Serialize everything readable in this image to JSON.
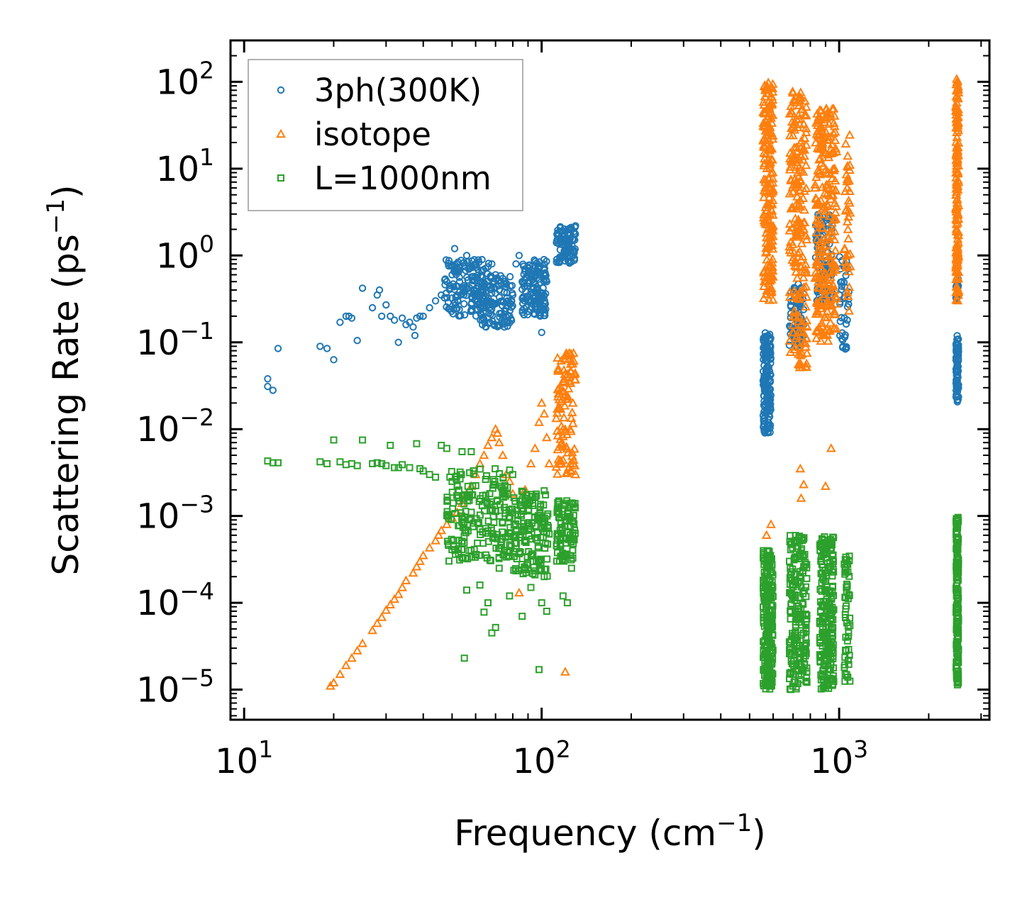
{
  "chart_data": {
    "type": "scatter",
    "title": "",
    "xlabel": "Frequency (cm",
    "xlabel_sup": "−1",
    "xlabel_close": ")",
    "ylabel": "Scattering Rate (ps",
    "ylabel_sup": "−1",
    "ylabel_close": ")",
    "xscale": "log",
    "yscale": "log",
    "xlim": [
      9.0,
      3200
    ],
    "ylim": [
      4.5e-06,
      300
    ],
    "x_ticks": [
      {
        "value": 10,
        "base": "10",
        "exp": "1"
      },
      {
        "value": 100,
        "base": "10",
        "exp": "2"
      },
      {
        "value": 1000,
        "base": "10",
        "exp": "3"
      }
    ],
    "y_ticks": [
      {
        "value": 100,
        "base": "10",
        "exp": "2"
      },
      {
        "value": 10,
        "base": "10",
        "exp": "1"
      },
      {
        "value": 1,
        "base": "10",
        "exp": "0"
      },
      {
        "value": 0.1,
        "base": "10",
        "exp": "−1"
      },
      {
        "value": 0.01,
        "base": "10",
        "exp": "−2"
      },
      {
        "value": 0.001,
        "base": "10",
        "exp": "−3"
      },
      {
        "value": 0.0001,
        "base": "10",
        "exp": "−4"
      },
      {
        "value": 1e-05,
        "base": "10",
        "exp": "−5"
      }
    ],
    "legend_position": "upper-left",
    "series": [
      {
        "name": "3ph(300K)",
        "marker": "circle",
        "color": "#1f77b4",
        "points": [
          [
            12,
            0.038
          ],
          [
            12,
            0.031
          ],
          [
            12.5,
            0.028
          ],
          [
            13,
            0.085
          ],
          [
            18,
            0.09
          ],
          [
            19,
            0.085
          ],
          [
            20,
            0.063
          ],
          [
            21,
            0.17
          ],
          [
            22,
            0.2
          ],
          [
            22.5,
            0.2
          ],
          [
            23,
            0.19
          ],
          [
            24,
            0.105
          ],
          [
            25,
            0.42
          ],
          [
            27,
            0.25
          ],
          [
            28,
            0.35
          ],
          [
            28.5,
            0.4
          ],
          [
            29,
            0.2
          ],
          [
            30,
            0.27
          ],
          [
            31,
            0.2
          ],
          [
            32,
            0.18
          ],
          [
            33,
            0.1
          ],
          [
            34,
            0.19
          ],
          [
            35,
            0.16
          ],
          [
            36,
            0.17
          ],
          [
            37,
            0.15
          ],
          [
            37.5,
            0.12
          ],
          [
            38,
            0.19
          ],
          [
            39,
            0.2
          ],
          [
            40,
            0.2
          ],
          [
            42,
            0.25
          ],
          [
            44,
            0.3
          ],
          [
            46,
            0.35
          ],
          [
            48,
            0.5
          ],
          [
            50,
            0.6
          ],
          [
            51,
            1.2
          ],
          [
            52,
            0.8
          ],
          [
            53,
            0.5
          ],
          [
            55,
            0.45
          ],
          [
            56,
            1.0
          ],
          [
            57,
            0.7
          ],
          [
            59,
            0.4
          ],
          [
            60,
            0.3
          ],
          [
            62,
            0.35
          ],
          [
            64,
            0.25
          ],
          [
            65,
            0.15
          ],
          [
            66,
            0.3
          ],
          [
            68,
            0.8
          ],
          [
            70,
            0.6
          ],
          [
            72,
            0.4
          ],
          [
            74,
            0.2
          ],
          [
            75,
            0.15
          ],
          [
            77,
            0.3
          ],
          [
            80,
            0.35
          ],
          [
            82,
            0.8
          ],
          [
            84,
            1.0
          ],
          [
            86,
            0.5
          ],
          [
            88,
            0.7
          ],
          [
            90,
            0.3
          ],
          [
            92,
            0.6
          ],
          [
            94,
            0.5
          ],
          [
            96,
            0.4
          ],
          [
            98,
            0.3
          ],
          [
            100,
            0.13
          ],
          [
            102,
            0.7
          ],
          [
            104,
            0.5
          ],
          [
            118,
            1.0
          ],
          [
            122,
            1.5
          ],
          [
            126,
            2.0
          ],
          [
            130,
            2.2
          ]
        ],
        "clusters": [
          {
            "x_min": 47,
            "x_max": 68,
            "y_min": 0.2,
            "y_max": 0.9,
            "count": 160
          },
          {
            "x_min": 62,
            "x_max": 80,
            "y_min": 0.15,
            "y_max": 0.6,
            "count": 110
          },
          {
            "x_min": 86,
            "x_max": 104,
            "y_min": 0.2,
            "y_max": 0.9,
            "count": 140
          },
          {
            "x_min": 112,
            "x_max": 130,
            "y_min": 0.8,
            "y_max": 2.2,
            "count": 90
          },
          {
            "x_min": 555,
            "x_max": 590,
            "y_min": 0.009,
            "y_max": 0.13,
            "count": 160
          },
          {
            "x_min": 680,
            "x_max": 760,
            "y_min": 0.09,
            "y_max": 0.5,
            "count": 80
          },
          {
            "x_min": 830,
            "x_max": 950,
            "y_min": 0.3,
            "y_max": 3.0,
            "count": 110
          },
          {
            "x_min": 1000,
            "x_max": 1080,
            "y_min": 0.08,
            "y_max": 1.0,
            "count": 40
          },
          {
            "x_min": 2470,
            "x_max": 2520,
            "y_min": 0.02,
            "y_max": 0.12,
            "count": 90
          },
          {
            "x_min": 2470,
            "x_max": 2520,
            "y_min": 0.3,
            "y_max": 0.55,
            "count": 20
          }
        ]
      },
      {
        "name": "isotope",
        "marker": "triangle",
        "color": "#ff7f0e",
        "points": [
          [
            19.5,
            1.1e-05
          ],
          [
            20,
            1.2e-05
          ],
          [
            21,
            1.5e-05
          ],
          [
            22,
            1.9e-05
          ],
          [
            23,
            2.3e-05
          ],
          [
            24,
            2.8e-05
          ],
          [
            25,
            3.4e-05
          ],
          [
            27,
            4.8e-05
          ],
          [
            28,
            5.8e-05
          ],
          [
            29,
            6.8e-05
          ],
          [
            30,
            8.2e-05
          ],
          [
            31,
            9.5e-05
          ],
          [
            32,
            0.00011
          ],
          [
            33,
            0.000125
          ],
          [
            34,
            0.00015
          ],
          [
            35,
            0.00018
          ],
          [
            37,
            0.00022
          ],
          [
            38,
            0.00026
          ],
          [
            39,
            0.0003
          ],
          [
            40,
            0.00035
          ],
          [
            42,
            0.00043
          ],
          [
            44,
            0.00052
          ],
          [
            45,
            0.0006
          ],
          [
            46,
            0.00068
          ],
          [
            48,
            0.0008
          ],
          [
            50,
            0.00095
          ],
          [
            52,
            0.0011
          ],
          [
            54,
            0.0014
          ],
          [
            56,
            0.0018
          ],
          [
            58,
            0.0022
          ],
          [
            60,
            0.003
          ],
          [
            62,
            0.004
          ],
          [
            64,
            0.005
          ],
          [
            66,
            0.0065
          ],
          [
            68,
            0.008
          ],
          [
            70,
            0.01
          ],
          [
            71,
            0.009
          ],
          [
            72,
            0.007
          ],
          [
            74,
            0.005
          ],
          [
            76,
            0.003
          ],
          [
            78,
            0.0025
          ],
          [
            80,
            0.0018
          ],
          [
            84,
            0.00013
          ],
          [
            88,
            0.002
          ],
          [
            92,
            0.004
          ],
          [
            95,
            0.006
          ],
          [
            98,
            0.012
          ],
          [
            100,
            0.02
          ],
          [
            102,
            0.015
          ],
          [
            104,
            0.008
          ],
          [
            106,
            0.004
          ],
          [
            120,
            1.6e-05
          ],
          [
            118,
            0.01
          ],
          [
            124,
            0.04
          ],
          [
            126,
            0.06
          ],
          [
            128,
            0.075
          ],
          [
            130,
            0.003
          ],
          [
            570,
            0.0006
          ],
          [
            590,
            0.0008
          ],
          [
            760,
            0.0023
          ],
          [
            740,
            0.0035
          ],
          [
            745,
            0.0016
          ],
          [
            900,
            0.0022
          ],
          [
            940,
            0.006
          ],
          [
            1080,
            0.23
          ]
        ],
        "clusters": [
          {
            "x_min": 112,
            "x_max": 130,
            "y_min": 0.003,
            "y_max": 0.075,
            "count": 100
          },
          {
            "x_min": 555,
            "x_max": 600,
            "y_min": 0.3,
            "y_max": 100,
            "count": 200
          },
          {
            "x_min": 680,
            "x_max": 780,
            "y_min": 0.05,
            "y_max": 80,
            "count": 220
          },
          {
            "x_min": 830,
            "x_max": 980,
            "y_min": 0.1,
            "y_max": 50,
            "count": 260
          },
          {
            "x_min": 1040,
            "x_max": 1090,
            "y_min": 0.3,
            "y_max": 25,
            "count": 40
          },
          {
            "x_min": 2470,
            "x_max": 2520,
            "y_min": 0.3,
            "y_max": 110,
            "count": 160
          }
        ]
      },
      {
        "name": "L=1000nm",
        "marker": "square",
        "color": "#2ca02c",
        "points": [
          [
            12,
            0.0043
          ],
          [
            12.5,
            0.0041
          ],
          [
            13,
            0.0041
          ],
          [
            18,
            0.0042
          ],
          [
            19,
            0.004
          ],
          [
            20,
            0.0075
          ],
          [
            21,
            0.0042
          ],
          [
            22,
            0.0039
          ],
          [
            23,
            0.004
          ],
          [
            24,
            0.0038
          ],
          [
            25,
            0.0075
          ],
          [
            27,
            0.004
          ],
          [
            28,
            0.0041
          ],
          [
            29,
            0.004
          ],
          [
            30,
            0.0038
          ],
          [
            31,
            0.0065
          ],
          [
            32,
            0.0036
          ],
          [
            33,
            0.0036
          ],
          [
            34,
            0.0039
          ],
          [
            36,
            0.0036
          ],
          [
            38,
            0.0068
          ],
          [
            39,
            0.0035
          ],
          [
            40,
            0.0033
          ],
          [
            42,
            0.003
          ],
          [
            44,
            0.0028
          ],
          [
            46,
            0.0065
          ],
          [
            48,
            0.006
          ],
          [
            50,
            0.0025
          ],
          [
            52,
            0.0022
          ],
          [
            54,
            0.0055
          ],
          [
            55,
            2.3e-05
          ],
          [
            56,
            0.00014
          ],
          [
            57,
            0.0004
          ],
          [
            58,
            0.0055
          ],
          [
            62,
            0.00016
          ],
          [
            64,
            7.8e-05
          ],
          [
            66,
            0.0001
          ],
          [
            68,
            4.5e-05
          ],
          [
            70,
            5.2e-05
          ],
          [
            72,
            0.00025
          ],
          [
            78,
            0.00012
          ],
          [
            86,
            7e-05
          ],
          [
            92,
            0.00015
          ],
          [
            98,
            1.7e-05
          ],
          [
            100,
            0.0001
          ],
          [
            102,
            0.0002
          ],
          [
            104,
            8e-05
          ],
          [
            118,
            0.00012
          ],
          [
            122,
            0.0001
          ],
          [
            126,
            0.00025
          ]
        ],
        "clusters": [
          {
            "x_min": 48,
            "x_max": 80,
            "y_min": 0.0003,
            "y_max": 0.0035,
            "count": 200
          },
          {
            "x_min": 80,
            "x_max": 106,
            "y_min": 0.0002,
            "y_max": 0.002,
            "count": 140
          },
          {
            "x_min": 112,
            "x_max": 130,
            "y_min": 0.0003,
            "y_max": 0.0015,
            "count": 90
          },
          {
            "x_min": 555,
            "x_max": 600,
            "y_min": 1e-05,
            "y_max": 0.0004,
            "count": 220
          },
          {
            "x_min": 680,
            "x_max": 780,
            "y_min": 1e-05,
            "y_max": 0.0006,
            "count": 200
          },
          {
            "x_min": 860,
            "x_max": 960,
            "y_min": 1e-05,
            "y_max": 0.0006,
            "count": 200
          },
          {
            "x_min": 1040,
            "x_max": 1090,
            "y_min": 1.2e-05,
            "y_max": 0.00035,
            "count": 50
          },
          {
            "x_min": 2470,
            "x_max": 2520,
            "y_min": 1.1e-05,
            "y_max": 0.001,
            "count": 160
          }
        ]
      }
    ]
  }
}
